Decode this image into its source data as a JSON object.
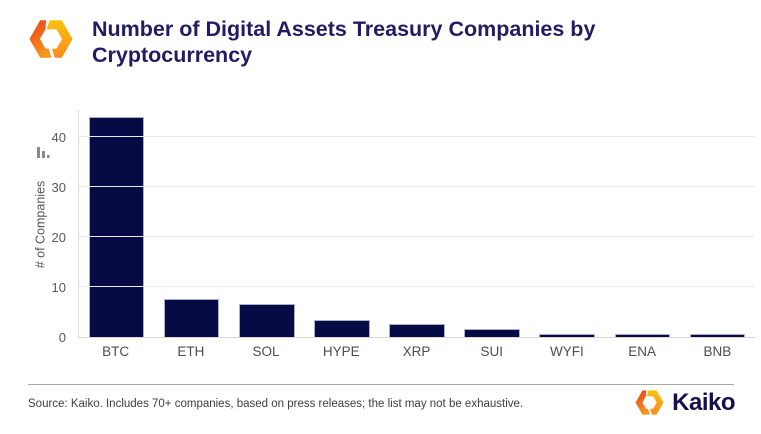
{
  "header": {
    "title": "Number of Digital Assets Treasury Companies by Cryptocurrency"
  },
  "chart_data": {
    "type": "bar",
    "title": "Number of Digital Assets Treasury Companies by Cryptocurrency",
    "categories": [
      "BTC",
      "ETH",
      "SOL",
      "HYPE",
      "XRP",
      "SUI",
      "WYFI",
      "ENA",
      "BNB"
    ],
    "values": [
      44,
      7.5,
      6.5,
      3.3,
      2.5,
      1.5,
      0.6,
      0.6,
      0.6
    ],
    "xlabel": "",
    "ylabel": "# of Companies",
    "yticks": [
      0,
      10,
      20,
      30,
      40
    ],
    "ylim": [
      0,
      45.5
    ],
    "grid": true,
    "legend": "none",
    "bar_color": "#070b45",
    "bar_border_color": "#a9aec9"
  },
  "icons": {
    "header_logo": "kaiko-hexagon-icon",
    "footer_logo": "kaiko-hexagon-icon",
    "axis_mini_chart": "mini-bar-chart-icon"
  },
  "colors": {
    "title_text": "#221c63",
    "axis_text": "#595959",
    "gridline": "#ececec",
    "divider": "#a8a8a8",
    "brand_text": "#14104b",
    "logo_orange": "#f26522",
    "logo_yellow": "#ffc20e"
  },
  "footer": {
    "source_note": "Source: Kaiko.  Includes 70+ companies, based on press releases; the list may not be exhaustive.",
    "brand_name": "Kaiko"
  }
}
